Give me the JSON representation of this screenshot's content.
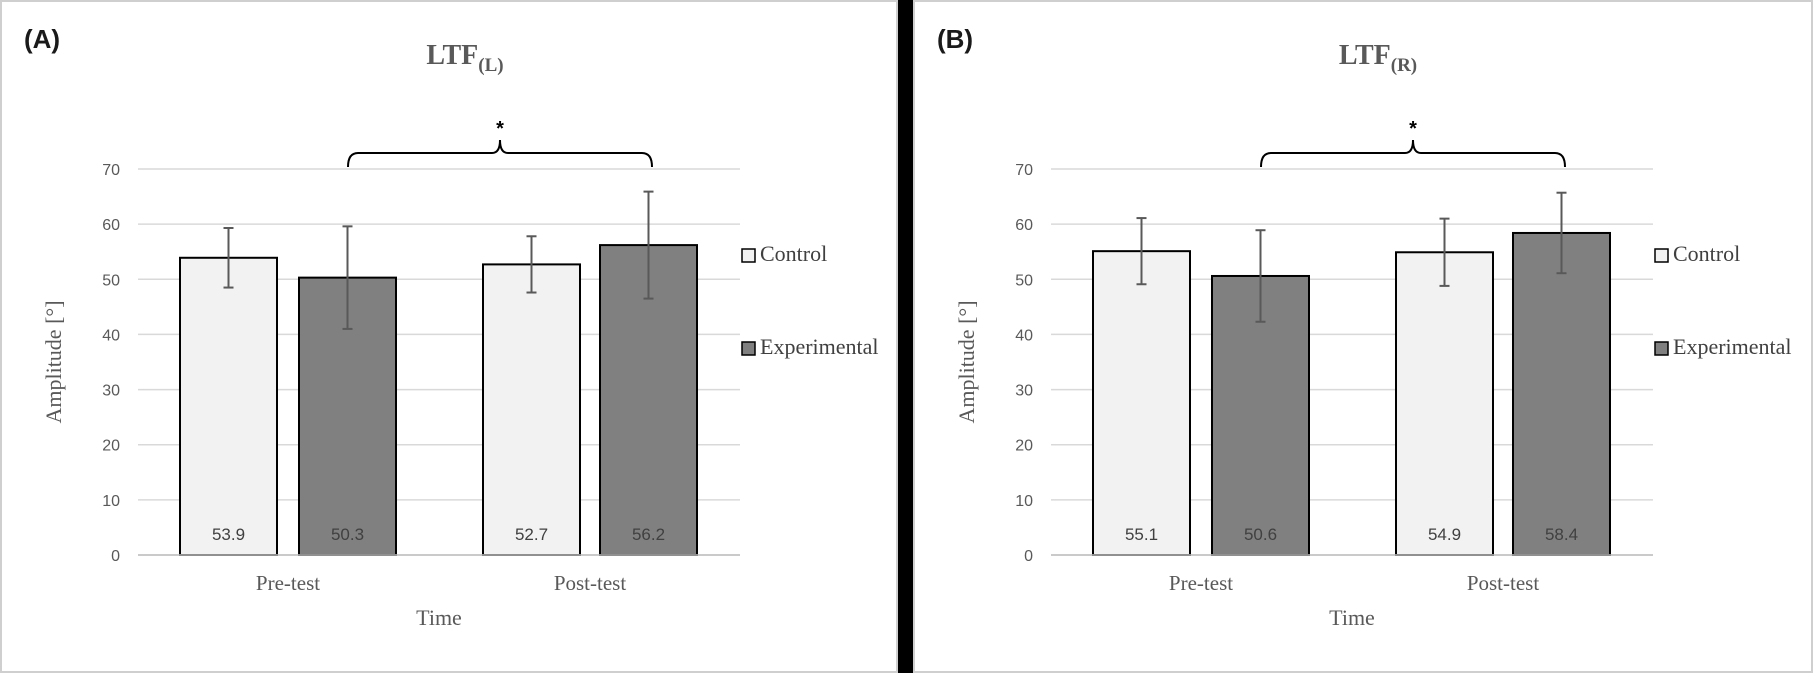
{
  "chart_data": [
    {
      "type": "bar",
      "panel_label": "(A)",
      "title": "LTF",
      "title_subscript": "(L)",
      "xlabel": "Time",
      "ylabel": "Amplitude [°]",
      "ylim": [
        0,
        70
      ],
      "yticks": [
        0,
        10,
        20,
        30,
        40,
        50,
        60,
        70
      ],
      "categories": [
        "Pre-test",
        "Post-test"
      ],
      "series": [
        {
          "name": "Control",
          "values": [
            53.9,
            52.7
          ],
          "errors": [
            5.4,
            5.1
          ],
          "color": "#f2f2f2"
        },
        {
          "name": "Experimental",
          "values": [
            50.3,
            56.2
          ],
          "errors": [
            9.3,
            9.7
          ],
          "color": "#808080"
        }
      ],
      "significance": "*",
      "legend_position": "right",
      "grid": true
    },
    {
      "type": "bar",
      "panel_label": "(B)",
      "title": "LTF",
      "title_subscript": "(R)",
      "xlabel": "Time",
      "ylabel": "Amplitude [°]",
      "ylim": [
        0,
        70
      ],
      "yticks": [
        0,
        10,
        20,
        30,
        40,
        50,
        60,
        70
      ],
      "categories": [
        "Pre-test",
        "Post-test"
      ],
      "series": [
        {
          "name": "Control",
          "values": [
            55.1,
            54.9
          ],
          "errors": [
            6.0,
            6.1
          ],
          "color": "#f2f2f2"
        },
        {
          "name": "Experimental",
          "values": [
            50.6,
            58.4
          ],
          "errors": [
            8.3,
            7.3
          ],
          "color": "#808080"
        }
      ],
      "significance": "*",
      "legend_position": "right",
      "grid": true
    }
  ]
}
